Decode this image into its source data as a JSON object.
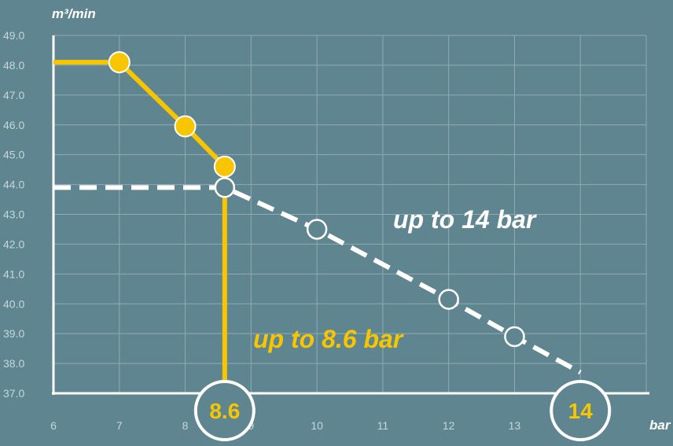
{
  "chart_data": {
    "type": "line",
    "ylabel": "m³/min",
    "xlabel": "bar",
    "xlim": [
      6,
      15
    ],
    "ylim": [
      37.0,
      49.0
    ],
    "x_ticks": [
      "6",
      "7",
      "8",
      "9",
      "10",
      "11",
      "12",
      "13",
      "14"
    ],
    "y_ticks": [
      "37.0",
      "38.0",
      "39.0",
      "40.0",
      "41.0",
      "42.0",
      "43.0",
      "44.0",
      "45.0",
      "46.0",
      "47.0",
      "48.0",
      "49.0"
    ],
    "grid": true,
    "series": [
      {
        "name": "up to 8.6 bar",
        "color": "#f7c600",
        "style": "solid",
        "values": [
          [
            6.0,
            48.1
          ],
          [
            7.0,
            48.1
          ],
          [
            8.0,
            45.95
          ],
          [
            8.6,
            44.6
          ]
        ]
      },
      {
        "name": "up to 14 bar",
        "color": "#ffffff",
        "style": "dashed",
        "values": [
          [
            6.0,
            43.9
          ],
          [
            8.6,
            43.9
          ],
          [
            10.0,
            42.5
          ],
          [
            12.0,
            40.15
          ],
          [
            13.0,
            38.9
          ],
          [
            14.0,
            37.7
          ]
        ]
      }
    ],
    "series_labels": [
      "up to 8.6 bar",
      "up to 14 bar"
    ],
    "badges": [
      "8.6",
      "14"
    ]
  }
}
